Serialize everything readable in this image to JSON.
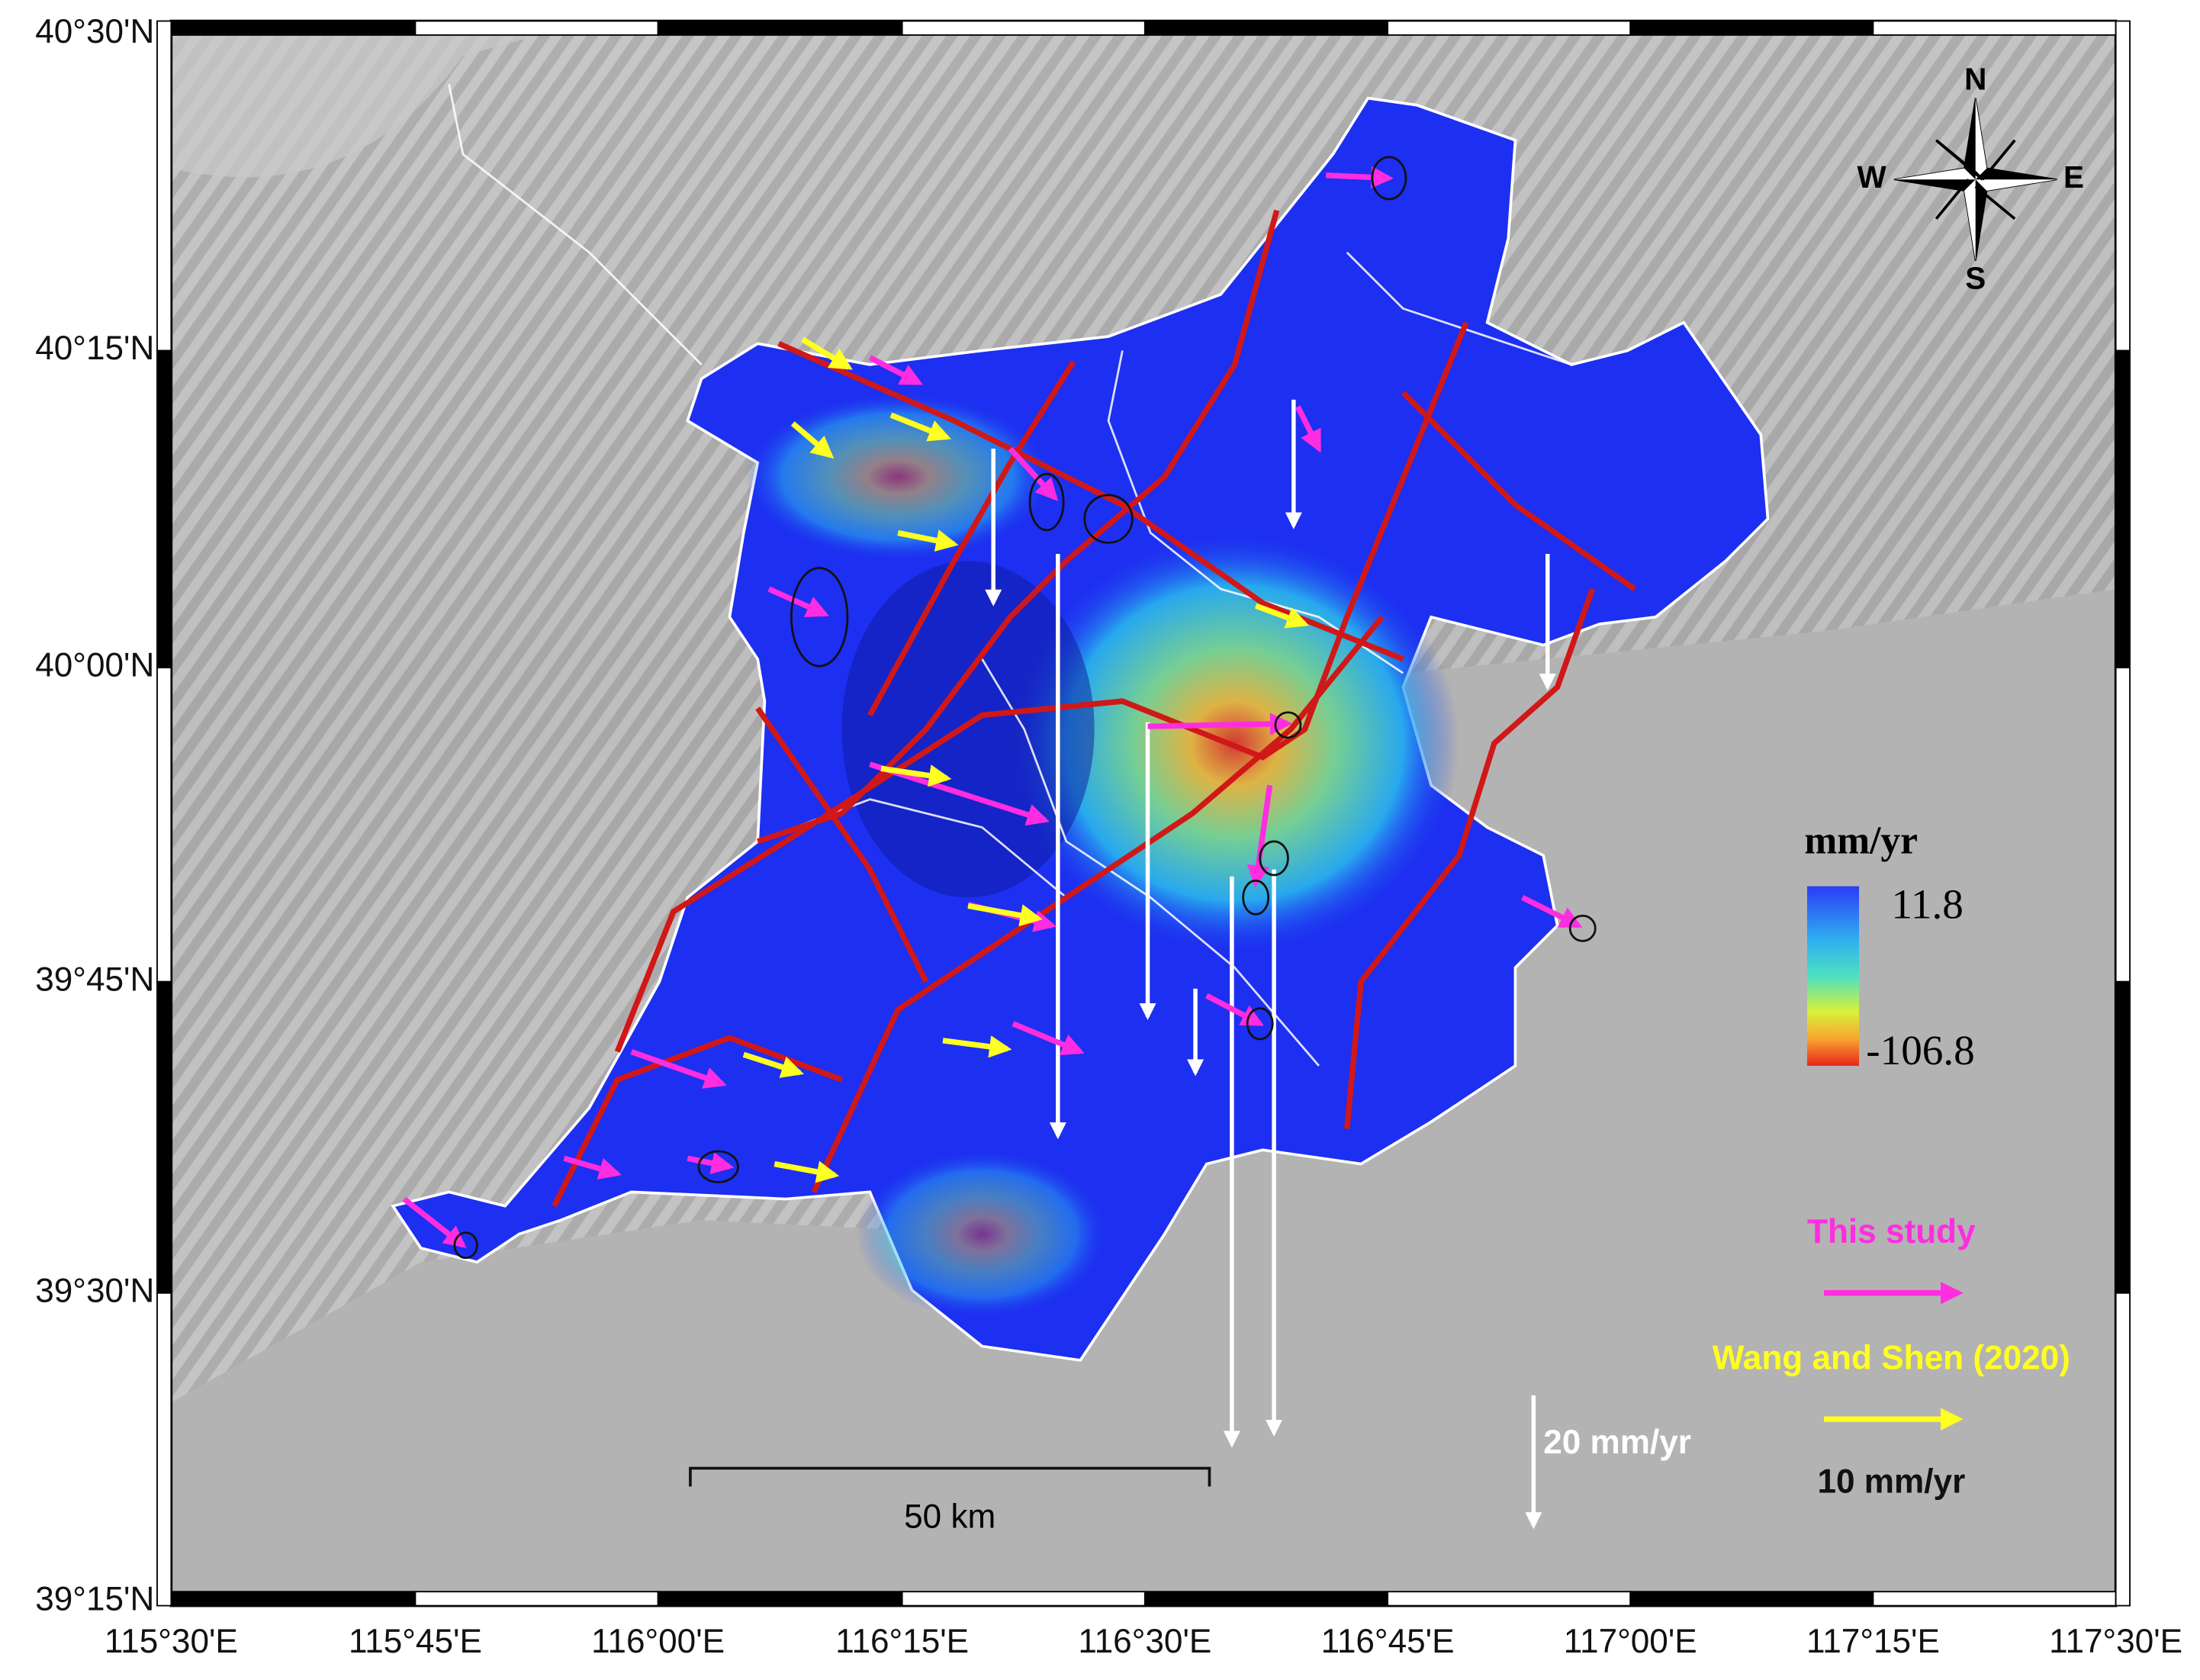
{
  "map": {
    "lon_ticks": [
      "115°30'E",
      "115°45'E",
      "116°00'E",
      "116°15'E",
      "116°30'E",
      "116°45'E",
      "117°00'E",
      "117°15'E",
      "117°30'E"
    ],
    "lat_ticks": [
      "40°30'N",
      "40°15'N",
      "40°00'N",
      "39°45'N",
      "39°30'N",
      "39°15'N"
    ],
    "compass": {
      "north": "N",
      "south": "S",
      "west": "W",
      "east": "E"
    },
    "colorbar": {
      "title": "mm/yr",
      "max": 11.8,
      "min": -106.8
    },
    "legend": {
      "this_study": "This study",
      "reference": "Wang and Shen (2020)",
      "horizontal_scale": "10 mm/yr",
      "vertical_scale": "20 mm/yr"
    },
    "scale_bar": "50 km"
  }
}
